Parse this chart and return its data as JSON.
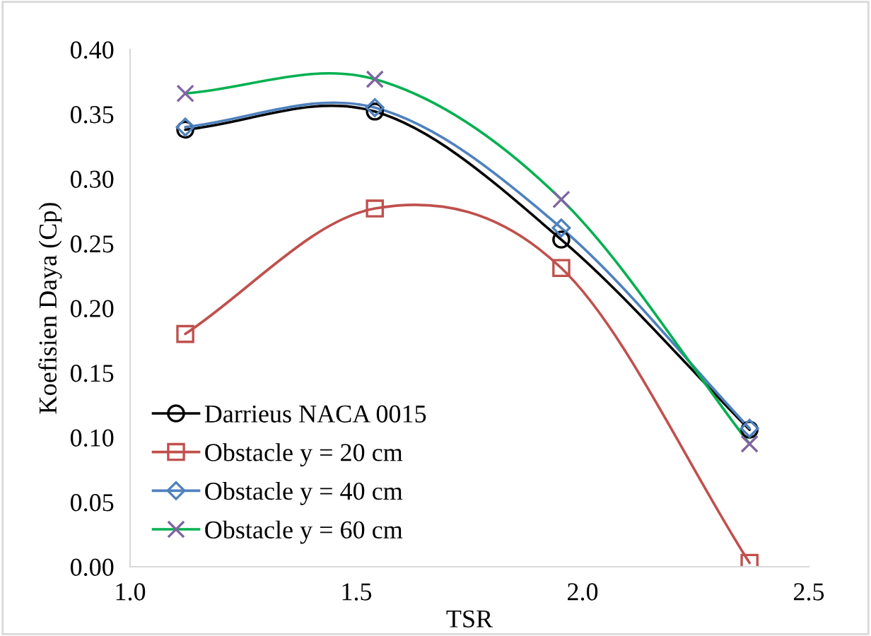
{
  "chart_data": {
    "type": "line",
    "xlabel": "TSR",
    "ylabel": "Koefisien Daya (Cp)",
    "x": [
      1.122,
      1.541,
      1.953,
      2.369
    ],
    "series": [
      {
        "name": "Darrieus NACA 0015",
        "color": "#000000",
        "marker": "circle",
        "values": [
          0.338,
          0.352,
          0.253,
          0.106
        ]
      },
      {
        "name": "Obstacle y = 20 cm",
        "color": "#c0504d",
        "marker": "square",
        "values": [
          0.18,
          0.277,
          0.231,
          0.003
        ]
      },
      {
        "name": "Obstacle y = 40 cm",
        "color": "#4f81bd",
        "marker": "diamond",
        "values": [
          0.34,
          0.355,
          0.262,
          0.107
        ]
      },
      {
        "name": "Obstacle y = 60 cm",
        "color": "#00b050",
        "colors": [
          "#8064a2",
          "#8064a2",
          "#8064a2",
          "#8064a2"
        ],
        "marker": "cross",
        "values": [
          0.366,
          0.377,
          0.284,
          0.095
        ]
      }
    ],
    "xlim": [
      1.0,
      2.5
    ],
    "xticks": [
      {
        "value": 1.0,
        "label": "1.0"
      },
      {
        "value": 1.5,
        "label": "1.5"
      },
      {
        "value": 2.0,
        "label": "2.0"
      },
      {
        "value": 2.5,
        "label": "2.5"
      }
    ],
    "ylim": [
      0,
      0.4
    ],
    "yticks": [
      {
        "value": 0,
        "label": "0.00"
      },
      {
        "value": 0.05,
        "label": "0.05"
      },
      {
        "value": 0.1,
        "label": "0.10"
      },
      {
        "value": 0.15,
        "label": "0.15"
      },
      {
        "value": 0.2,
        "label": "0.20"
      },
      {
        "value": 0.25,
        "label": "0.25"
      },
      {
        "value": 0.3,
        "label": "0.30"
      },
      {
        "value": 0.35,
        "label": "0.35"
      },
      {
        "value": 0.4,
        "label": "0.40"
      }
    ],
    "grid": false,
    "legend": "bottom left",
    "line_style": "solid"
  }
}
